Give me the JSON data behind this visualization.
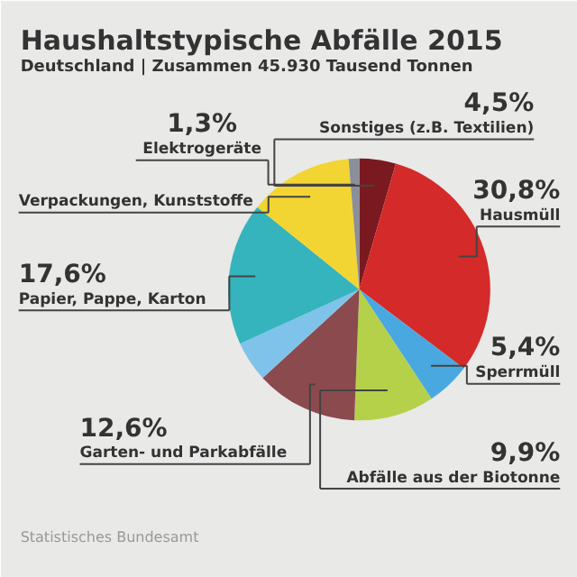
{
  "chart_data": {
    "type": "pie",
    "title": "Haushaltstypische Abfälle 2015",
    "subtitle": "Deutschland | Zusammen 45.930 Tausend Tonnen",
    "categories": [
      "Sonstiges (z.B. Textilien)",
      "Hausmüll",
      "Sperrmüll",
      "Abfälle aus der Biotonne",
      "Garten- und Parkabfälle",
      null,
      "Papier, Pappe, Karton",
      "Verpackungen, Kunststoffe",
      "Elektrogeräte"
    ],
    "values": [
      4.5,
      30.8,
      5.4,
      9.9,
      12.6,
      5.0,
      17.6,
      12.9,
      1.3
    ],
    "value_labels": [
      "4,5%",
      "30,8%",
      "5,4%",
      "9,9%",
      "12,6%",
      null,
      "17,6%",
      null,
      "1,3%"
    ],
    "colors": [
      "#7a1a20",
      "#d42a2a",
      "#4aa8e0",
      "#b5d14a",
      "#8b4a4e",
      "#7fc3ea",
      "#35b4bd",
      "#f2d532",
      "#8a8f99"
    ],
    "annotations": [
      "Statistisches Bundesamt"
    ]
  }
}
